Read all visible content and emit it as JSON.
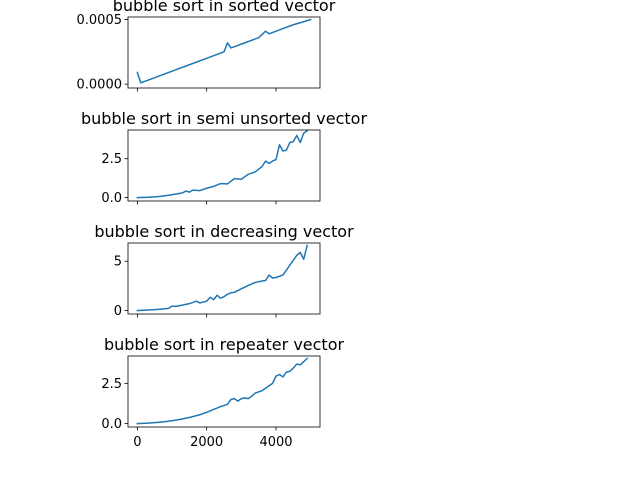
{
  "chart_data": [
    {
      "type": "line",
      "title": "bubble sort in sorted vector",
      "xlabel": "",
      "ylabel": "",
      "xlim": [
        -270,
        5270
      ],
      "ylim": [
        -3e-05,
        0.00052
      ],
      "yticks": [
        0.0,
        0.0005
      ],
      "ytick_labels": [
        "0.0000",
        "0.0005"
      ],
      "xticks": [
        0,
        2000,
        4000
      ],
      "xtick_labels": [
        "",
        "",
        ""
      ],
      "series": [
        {
          "color": "#1f77b4",
          "x": [
            0,
            100,
            200,
            500,
            1000,
            1500,
            2000,
            2500,
            2600,
            2700,
            2800,
            3000,
            3500,
            3700,
            3800,
            4000,
            4500,
            5000
          ],
          "y": [
            9e-05,
            1e-05,
            2e-05,
            5e-05,
            0.0001,
            0.00015,
            0.0002,
            0.00025,
            0.00032,
            0.00028,
            0.00029,
            0.00031,
            0.00036,
            0.00041,
            0.00039,
            0.00041,
            0.00046,
            0.0005
          ]
        }
      ]
    },
    {
      "type": "line",
      "title": "bubble sort in semi unsorted vector",
      "xlabel": "",
      "ylabel": "",
      "xlim": [
        -270,
        5270
      ],
      "ylim": [
        -0.22,
        4.35
      ],
      "yticks": [
        0.0,
        2.5
      ],
      "ytick_labels": [
        "0.0",
        "2.5"
      ],
      "xticks": [
        0,
        2000,
        4000
      ],
      "xtick_labels": [
        "",
        "",
        ""
      ],
      "series": [
        {
          "color": "#1f77b4",
          "x": [
            0,
            300,
            600,
            900,
            1100,
            1300,
            1400,
            1500,
            1600,
            1800,
            2000,
            2200,
            2400,
            2600,
            2800,
            3000,
            3200,
            3400,
            3600,
            3700,
            3800,
            3900,
            4000,
            4100,
            4200,
            4300,
            4400,
            4500,
            4600,
            4700,
            4800,
            4900
          ],
          "y": [
            0.0,
            0.02,
            0.06,
            0.15,
            0.22,
            0.3,
            0.42,
            0.35,
            0.48,
            0.45,
            0.6,
            0.72,
            0.9,
            0.88,
            1.22,
            1.18,
            1.5,
            1.65,
            2.0,
            2.35,
            2.2,
            2.35,
            2.45,
            3.4,
            3.0,
            3.05,
            3.55,
            3.6,
            4.0,
            3.55,
            4.15,
            4.3
          ]
        }
      ]
    },
    {
      "type": "line",
      "title": "bubble sort in decreasing vector",
      "xlabel": "",
      "ylabel": "",
      "xlim": [
        -270,
        5270
      ],
      "ylim": [
        -0.35,
        6.85
      ],
      "yticks": [
        0,
        5
      ],
      "ytick_labels": [
        "0",
        "5"
      ],
      "xticks": [
        0,
        2000,
        4000
      ],
      "xtick_labels": [
        "",
        "",
        ""
      ],
      "series": [
        {
          "color": "#1f77b4",
          "x": [
            0,
            300,
            600,
            900,
            1000,
            1100,
            1300,
            1500,
            1700,
            1800,
            1900,
            2000,
            2100,
            2200,
            2300,
            2400,
            2500,
            2600,
            2700,
            2800,
            3000,
            3200,
            3400,
            3600,
            3700,
            3800,
            3900,
            4000,
            4200,
            4400,
            4600,
            4700,
            4800,
            4900
          ],
          "y": [
            0.0,
            0.05,
            0.12,
            0.22,
            0.45,
            0.42,
            0.55,
            0.7,
            0.95,
            0.78,
            0.85,
            0.95,
            1.35,
            1.1,
            1.55,
            1.25,
            1.4,
            1.65,
            1.8,
            1.85,
            2.2,
            2.55,
            2.85,
            3.0,
            3.05,
            3.6,
            3.3,
            3.35,
            3.6,
            4.6,
            5.6,
            5.9,
            5.2,
            6.6
          ]
        }
      ]
    },
    {
      "type": "line",
      "title": "bubble sort in repeater vector",
      "xlabel": "",
      "ylabel": "",
      "xlim": [
        -270,
        5270
      ],
      "ylim": [
        -0.21,
        4.2
      ],
      "yticks": [
        0.0,
        2.5
      ],
      "ytick_labels": [
        "0.0",
        "2.5"
      ],
      "xticks": [
        0,
        2000,
        4000
      ],
      "xtick_labels": [
        "0",
        "2000",
        "4000"
      ],
      "series": [
        {
          "color": "#1f77b4",
          "x": [
            0,
            300,
            600,
            900,
            1200,
            1500,
            1800,
            2000,
            2200,
            2400,
            2600,
            2700,
            2800,
            2900,
            3000,
            3100,
            3200,
            3300,
            3400,
            3600,
            3800,
            3900,
            4000,
            4100,
            4200,
            4300,
            4400,
            4500,
            4600,
            4700,
            4800,
            4900
          ],
          "y": [
            0.0,
            0.03,
            0.08,
            0.15,
            0.25,
            0.38,
            0.55,
            0.7,
            0.88,
            1.05,
            1.2,
            1.5,
            1.55,
            1.4,
            1.55,
            1.6,
            1.55,
            1.7,
            1.9,
            2.05,
            2.35,
            2.5,
            2.95,
            3.05,
            2.9,
            3.2,
            3.25,
            3.45,
            3.7,
            3.65,
            3.85,
            4.05
          ]
        }
      ]
    }
  ]
}
